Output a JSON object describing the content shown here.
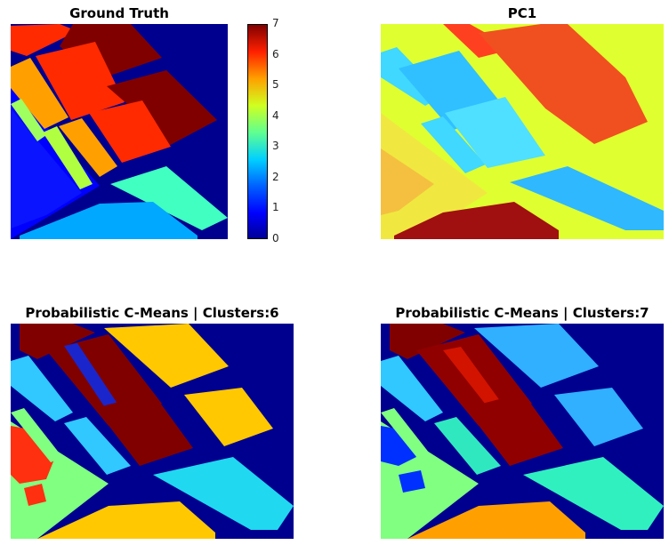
{
  "panels": {
    "ground_truth": {
      "title": "Ground Truth"
    },
    "pc1": {
      "title": "PC1"
    },
    "pcm6": {
      "title": "Probabilistic C-Means | Clusters:6"
    },
    "pcm7": {
      "title": "Probabilistic C-Means | Clusters:7"
    }
  },
  "colorbar": {
    "ticks": [
      "7",
      "6",
      "5",
      "4",
      "3",
      "2",
      "1",
      "0"
    ],
    "colors": [
      "#00008f",
      "#0000ff",
      "#0080ff",
      "#00ffff",
      "#80ff80",
      "#ffff00",
      "#ff8000",
      "#ff0000",
      "#800000"
    ]
  }
}
